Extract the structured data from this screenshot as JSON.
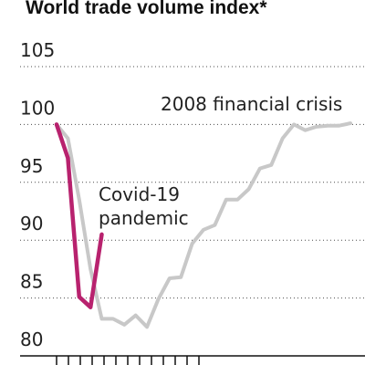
{
  "chart_data": {
    "type": "line",
    "title": "World trade volume index*",
    "ylim": [
      80,
      105
    ],
    "yticks": [
      80,
      85,
      90,
      95,
      100,
      105
    ],
    "x_tick_count": 13,
    "grid": true,
    "series": [
      {
        "name": "2008 financial crisis",
        "color": "#c8c8c8",
        "x": [
          0,
          1,
          2,
          3,
          4,
          5,
          6,
          7,
          8,
          9,
          10,
          11,
          12,
          13,
          14,
          15,
          16,
          17,
          18,
          19,
          20,
          21,
          22,
          23,
          24,
          25,
          26
        ],
        "values": [
          100,
          98.8,
          93.5,
          87.5,
          83.2,
          83.2,
          82.7,
          83.5,
          82.5,
          84.9,
          86.7,
          86.8,
          89.7,
          90.9,
          91.3,
          93.5,
          93.5,
          94.4,
          96.2,
          96.5,
          98.8,
          100,
          99.5,
          99.8,
          99.9,
          99.9,
          100.1
        ]
      },
      {
        "name": "Covid-19 pandemic",
        "color": "#b8226e",
        "x": [
          0,
          1,
          2,
          3,
          4
        ],
        "values": [
          100,
          97.1,
          85.1,
          84.2,
          90.5
        ]
      }
    ],
    "annotations": {
      "financial_crisis": "2008 financial crisis",
      "covid_line1": "Covid-19",
      "covid_line2": "pandemic"
    }
  }
}
